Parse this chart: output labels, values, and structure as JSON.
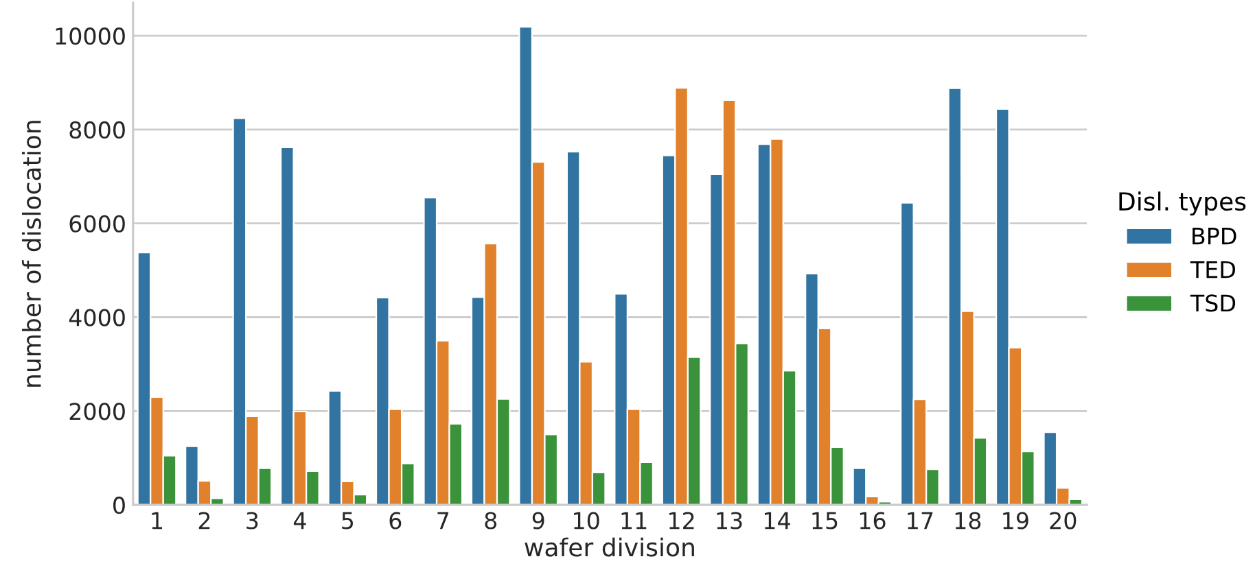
{
  "chart_data": {
    "type": "bar",
    "xlabel": "wafer division",
    "ylabel": "number of dislocation",
    "legend_title": "Disl. types",
    "categories": [
      "1",
      "2",
      "3",
      "4",
      "5",
      "6",
      "7",
      "8",
      "9",
      "10",
      "11",
      "12",
      "13",
      "14",
      "15",
      "16",
      "17",
      "18",
      "19",
      "20"
    ],
    "series": [
      {
        "name": "BPD",
        "color": "#3274a1",
        "values": [
          5380,
          1250,
          8240,
          7620,
          2430,
          4420,
          6550,
          4430,
          10190,
          7530,
          4500,
          7450,
          7050,
          7690,
          4930,
          780,
          6440,
          8880,
          8440,
          1550
        ]
      },
      {
        "name": "TED",
        "color": "#e1812c",
        "values": [
          2300,
          510,
          1890,
          1990,
          500,
          2040,
          3500,
          5570,
          7310,
          3050,
          2040,
          8890,
          8630,
          7800,
          3760,
          180,
          2250,
          4130,
          3350,
          360
        ]
      },
      {
        "name": "TSD",
        "color": "#3a923a",
        "values": [
          1050,
          140,
          780,
          720,
          220,
          880,
          1730,
          2260,
          1500,
          690,
          910,
          3150,
          3440,
          2860,
          1230,
          70,
          760,
          1430,
          1140,
          120
        ]
      }
    ],
    "ylim": [
      0,
      10700
    ],
    "yticks": [
      0,
      2000,
      4000,
      6000,
      8000,
      10000
    ],
    "grid": "y",
    "legend": "right"
  }
}
